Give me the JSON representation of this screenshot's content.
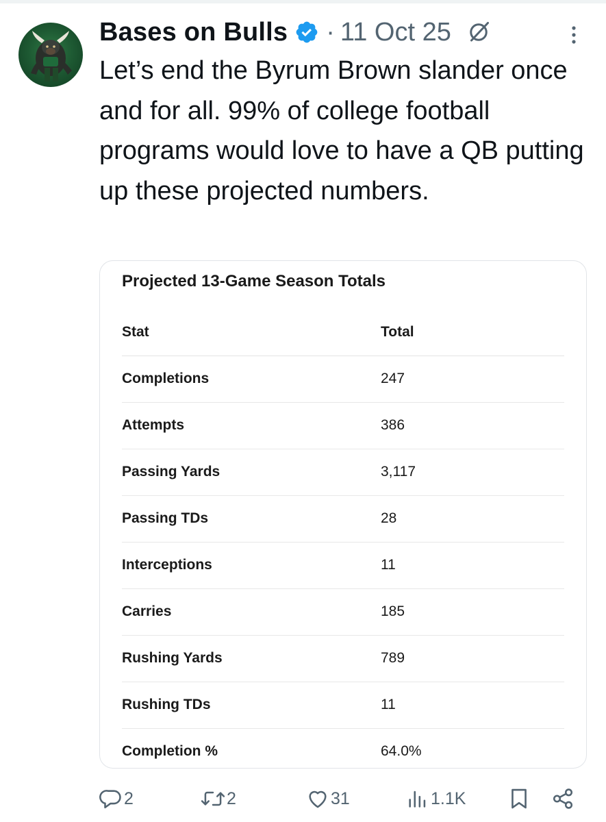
{
  "tweet": {
    "display_name": "Bases on Bulls",
    "separator": "·",
    "timestamp": "11 Oct 25",
    "text": "Let’s end the Byrum Brown slander once and for all. 99% of college football programs would love to have a QB putting up these projected numbers.",
    "avatar_icon": "bull-mascot-avatar",
    "verified_icon": "verified-badge-icon",
    "accent_color": "#1d9bf0"
  },
  "card": {
    "title": "Projected 13-Game Season Totals",
    "columns": [
      "Stat",
      "Total"
    ],
    "rows": [
      {
        "stat": "Completions",
        "total": "247"
      },
      {
        "stat": "Attempts",
        "total": "386"
      },
      {
        "stat": "Passing Yards",
        "total": "3,117"
      },
      {
        "stat": "Passing TDs",
        "total": "28"
      },
      {
        "stat": "Interceptions",
        "total": "11"
      },
      {
        "stat": "Carries",
        "total": "185"
      },
      {
        "stat": "Rushing Yards",
        "total": "789"
      },
      {
        "stat": "Rushing TDs",
        "total": "11"
      },
      {
        "stat": "Completion %",
        "total": "64.0%"
      }
    ]
  },
  "actions": {
    "replies": "2",
    "reposts": "2",
    "likes": "31",
    "views": "1.1K"
  }
}
